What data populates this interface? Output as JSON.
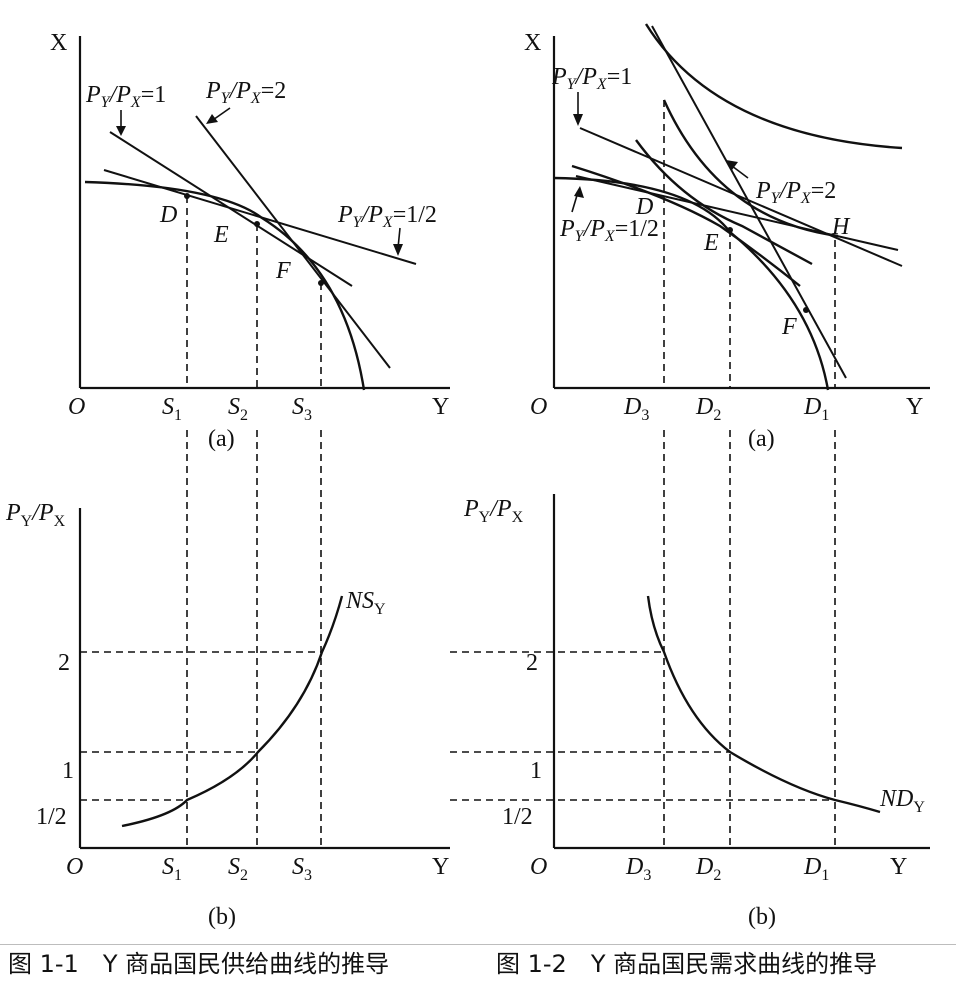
{
  "fig1": {
    "top": {
      "y_axis": "X",
      "x_axis": "Y",
      "origin": "O",
      "panel": "(a)",
      "line_labels": [
        "P",
        "Y",
        "/",
        "P",
        "X",
        "=1",
        "=2",
        "=1/2"
      ],
      "points": [
        "D",
        "E",
        "F"
      ],
      "ticks": [
        {
          "m": "S",
          "s": "1"
        },
        {
          "m": "S",
          "s": "2"
        },
        {
          "m": "S",
          "s": "3"
        }
      ]
    },
    "bottom": {
      "y_axis_main": "P",
      "y_axis_sub1": "Y",
      "y_axis_slash": "/",
      "y_axis_main2": "P",
      "y_axis_sub2": "X",
      "x_axis": "Y",
      "origin": "O",
      "panel": "(b)",
      "y_ticks": [
        "2",
        "1",
        "1/2"
      ],
      "x_ticks": [
        {
          "m": "S",
          "s": "1"
        },
        {
          "m": "S",
          "s": "2"
        },
        {
          "m": "S",
          "s": "3"
        }
      ],
      "curve_label": "NS",
      "curve_sub": "Y"
    },
    "caption": "图 1-1　Y 商品国民供给曲线的推导"
  },
  "fig2": {
    "top": {
      "y_axis": "X",
      "x_axis": "Y",
      "origin": "O",
      "panel": "(a)",
      "points": [
        "D",
        "E",
        "F",
        "H"
      ],
      "ticks": [
        {
          "m": "D",
          "s": "3"
        },
        {
          "m": "D",
          "s": "2"
        },
        {
          "m": "D",
          "s": "1"
        }
      ]
    },
    "bottom": {
      "x_axis": "Y",
      "origin": "O",
      "panel": "(b)",
      "y_ticks": [
        "2",
        "1",
        "1/2"
      ],
      "x_ticks": [
        {
          "m": "D",
          "s": "3"
        },
        {
          "m": "D",
          "s": "2"
        },
        {
          "m": "D",
          "s": "1"
        }
      ],
      "curve_label": "ND",
      "curve_sub": "Y"
    },
    "caption": "图 1-2　Y 商品国民需求曲线的推导"
  }
}
